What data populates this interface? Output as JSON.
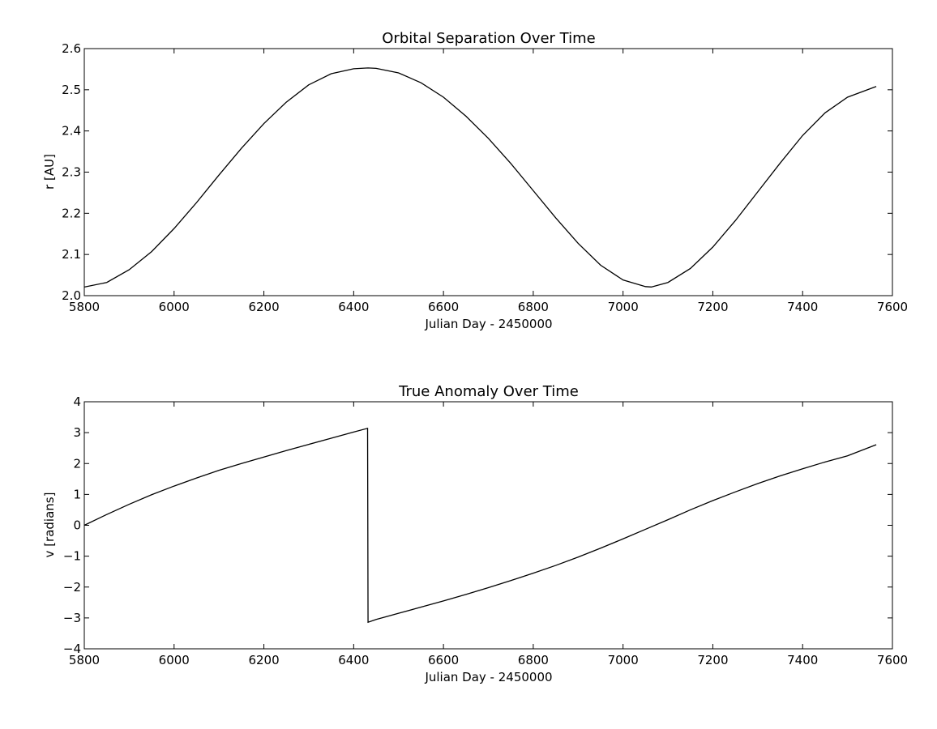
{
  "chart_data": [
    {
      "type": "line",
      "title": "Orbital Separation Over Time",
      "xlabel": "Julian Day - 2450000",
      "ylabel": "r [AU]",
      "xlim": [
        5800,
        7600
      ],
      "ylim": [
        2.0,
        2.6
      ],
      "xticks": [
        "5800",
        "6000",
        "6200",
        "6400",
        "6600",
        "6800",
        "7000",
        "7200",
        "7400",
        "7600"
      ],
      "yticks": [
        "2.0",
        "2.1",
        "2.2",
        "2.3",
        "2.4",
        "2.5",
        "2.6"
      ],
      "grid": false,
      "line_color": "#000000",
      "series": [
        {
          "x": [
            5800,
            5850,
            5900,
            5950,
            6000,
            6050,
            6100,
            6150,
            6200,
            6250,
            6300,
            6350,
            6400,
            6432,
            6450,
            6500,
            6550,
            6600,
            6650,
            6700,
            6750,
            6800,
            6850,
            6900,
            6950,
            7000,
            7050,
            7063,
            7100,
            7150,
            7200,
            7250,
            7300,
            7350,
            7400,
            7450,
            7500,
            7564
          ],
          "y": [
            2.021,
            2.032,
            2.063,
            2.107,
            2.163,
            2.226,
            2.293,
            2.358,
            2.418,
            2.47,
            2.512,
            2.539,
            2.551,
            2.553,
            2.552,
            2.541,
            2.517,
            2.482,
            2.436,
            2.382,
            2.321,
            2.255,
            2.189,
            2.127,
            2.074,
            2.038,
            2.022,
            2.021,
            2.032,
            2.066,
            2.118,
            2.182,
            2.252,
            2.322,
            2.389,
            2.444,
            2.482,
            2.508
          ]
        }
      ]
    },
    {
      "type": "line",
      "title": "True Anomaly Over Time",
      "xlabel": "Julian Day - 2450000",
      "ylabel": "v [radians]",
      "xlim": [
        5800,
        7600
      ],
      "ylim": [
        -4,
        4
      ],
      "xticks": [
        "5800",
        "6000",
        "6200",
        "6400",
        "6600",
        "6800",
        "7000",
        "7200",
        "7400",
        "7600"
      ],
      "yticks": [
        "−4",
        "−3",
        "−2",
        "−1",
        "0",
        "1",
        "2",
        "3",
        "4"
      ],
      "grid": false,
      "line_color": "#000000",
      "series": [
        {
          "x": [
            5800,
            5850,
            5900,
            5950,
            6000,
            6050,
            6100,
            6150,
            6200,
            6250,
            6300,
            6350,
            6400,
            6431,
            6432,
            6450,
            6500,
            6550,
            6600,
            6650,
            6700,
            6750,
            6800,
            6850,
            6900,
            6950,
            7000,
            7050,
            7100,
            7150,
            7200,
            7250,
            7300,
            7350,
            7400,
            7450,
            7500,
            7564
          ],
          "y": [
            0.0,
            0.35,
            0.68,
            0.99,
            1.27,
            1.53,
            1.78,
            2.0,
            2.21,
            2.42,
            2.62,
            2.82,
            3.02,
            3.14,
            -3.14,
            -3.05,
            -2.85,
            -2.65,
            -2.45,
            -2.24,
            -2.02,
            -1.79,
            -1.55,
            -1.3,
            -1.03,
            -0.74,
            -0.44,
            -0.13,
            0.18,
            0.5,
            0.8,
            1.08,
            1.35,
            1.6,
            1.83,
            2.05,
            2.25,
            2.61
          ]
        }
      ]
    }
  ]
}
